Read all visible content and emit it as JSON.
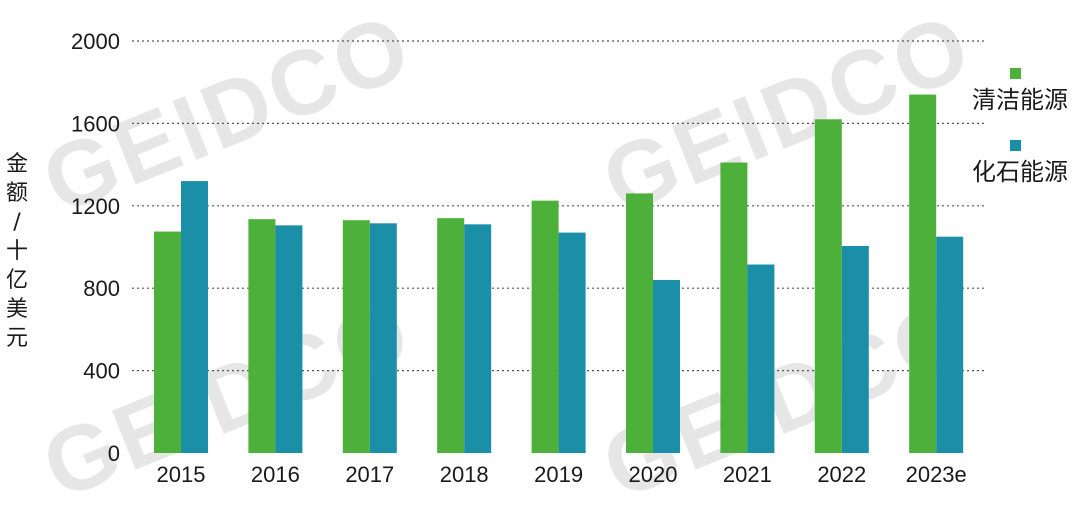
{
  "watermark": "GEIDCO",
  "chart_data": {
    "type": "bar",
    "categories": [
      "2015",
      "2016",
      "2017",
      "2018",
      "2019",
      "2020",
      "2021",
      "2022",
      "2023e"
    ],
    "series": [
      {
        "name": "清洁能源",
        "color": "#4db03a",
        "values": [
          1075,
          1135,
          1130,
          1140,
          1225,
          1260,
          1410,
          1620,
          1740
        ]
      },
      {
        "name": "化石能源",
        "color": "#1b8ea8",
        "values": [
          1320,
          1105,
          1115,
          1110,
          1070,
          840,
          915,
          1005,
          1050
        ]
      }
    ],
    "ylabel": "金额 / 十亿美元",
    "xlabel": "",
    "ylim": [
      0,
      2000
    ],
    "yticks": [
      0,
      400,
      800,
      1200,
      1600,
      2000
    ],
    "grid": "horizontal dotted",
    "legend": "right"
  }
}
